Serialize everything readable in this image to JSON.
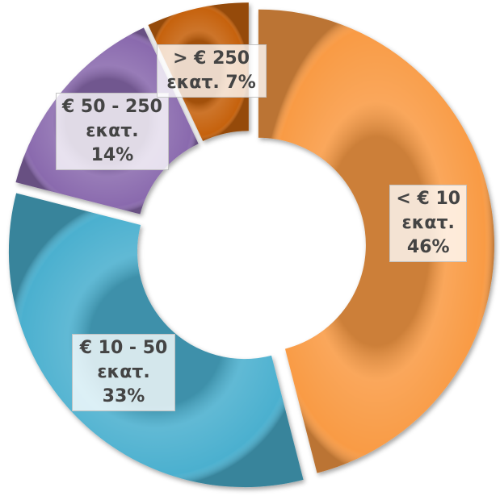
{
  "chart_data": {
    "type": "donut",
    "categories": [
      "< € 10 εκατ.",
      "€ 10 - 50 εκατ.",
      "€ 50 - 250 εκατ.",
      "> € 250 εκατ."
    ],
    "values": [
      46,
      33,
      14,
      7
    ],
    "value_labels": [
      "46%",
      "33%",
      "14%",
      "7%"
    ],
    "colors": [
      "#f99b45",
      "#4bb0cf",
      "#8a6aae",
      "#c6620e"
    ]
  }
}
